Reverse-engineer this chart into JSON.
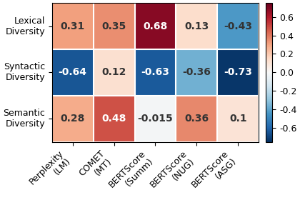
{
  "matrix": [
    [
      0.31,
      0.35,
      0.68,
      0.13,
      -0.43
    ],
    [
      -0.64,
      0.12,
      -0.63,
      -0.36,
      -0.73
    ],
    [
      0.28,
      0.48,
      -0.015,
      0.36,
      0.1
    ]
  ],
  "row_labels": [
    "Lexical\nDiversity",
    "Syntactic\nDiversity",
    "Semantic\nDiversity"
  ],
  "col_labels": [
    "Perplexity\n(LM)",
    "COMET\n(MT)",
    "BERTScore\n(Summ)",
    "BERTScore\n(NUG)",
    "BERTScore\n(ASG)"
  ],
  "vmin": -0.75,
  "vmax": 0.75,
  "colormap": "RdBu_r",
  "annotation_fontsize": 10,
  "label_fontsize": 9,
  "cbar_fontsize": 9,
  "white_thresh": 0.5
}
